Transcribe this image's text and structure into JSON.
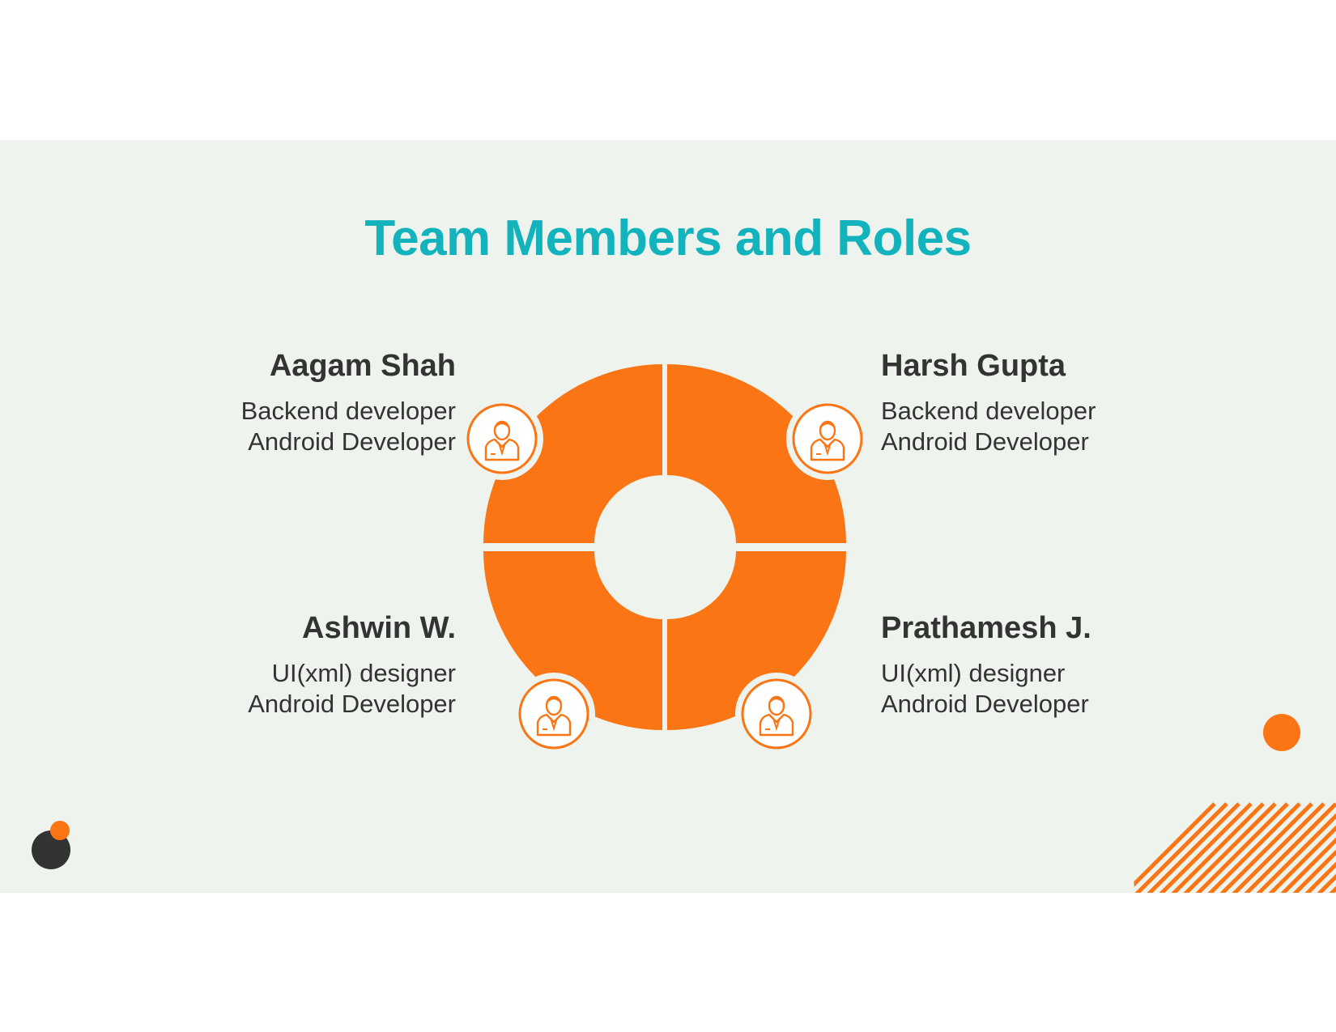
{
  "slide": {
    "title": "Team Members and Roles"
  },
  "members": [
    {
      "name": "Aagam Shah",
      "roles": [
        "Backend developer",
        "Android Developer"
      ],
      "icon": "person-icon"
    },
    {
      "name": "Harsh Gupta",
      "roles": [
        "Backend developer",
        "Android Developer"
      ],
      "icon": "person-icon"
    },
    {
      "name": "Ashwin W.",
      "roles": [
        "UI(xml) designer",
        "Android Developer"
      ],
      "icon": "person-icon"
    },
    {
      "name": "Prathamesh J.",
      "roles": [
        "UI(xml) designer",
        "Android Developer"
      ],
      "icon": "person-icon"
    }
  ],
  "colors": {
    "accent": "#fb7515",
    "title": "#12b3bd",
    "background": "#eef4ed",
    "text": "#333333",
    "dark_dot": "#333333"
  }
}
